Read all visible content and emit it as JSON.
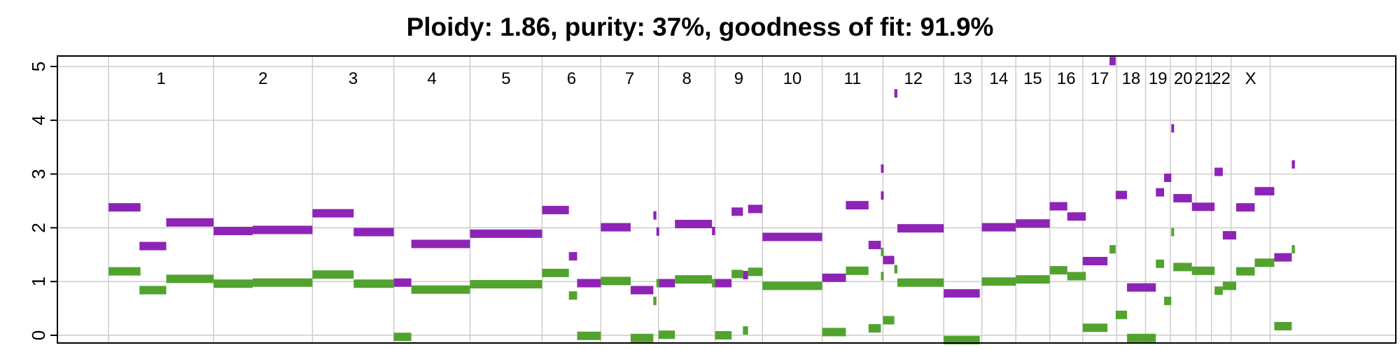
{
  "chart_data": {
    "type": "segment",
    "title": "Ploidy: 1.86, purity: 37%, goodness of fit: 91.9%",
    "xlabel": "",
    "ylabel": "",
    "ylim": [
      0,
      5
    ],
    "yticks": [
      "0",
      "1",
      "2",
      "3",
      "4",
      "5"
    ],
    "grid": true,
    "chromosomes": [
      {
        "label": "1",
        "start": 0.0,
        "end": 10.2
      },
      {
        "label": "2",
        "start": 10.2,
        "end": 19.8
      },
      {
        "label": "3",
        "start": 19.8,
        "end": 27.7
      },
      {
        "label": "4",
        "start": 27.7,
        "end": 35.1
      },
      {
        "label": "5",
        "start": 35.1,
        "end": 42.1
      },
      {
        "label": "6",
        "start": 42.1,
        "end": 47.8
      },
      {
        "label": "7",
        "start": 47.8,
        "end": 53.4
      },
      {
        "label": "8",
        "start": 53.4,
        "end": 58.9
      },
      {
        "label": "9",
        "start": 58.9,
        "end": 63.5
      },
      {
        "label": "10",
        "start": 63.5,
        "end": 69.3
      },
      {
        "label": "11",
        "start": 69.3,
        "end": 75.2
      },
      {
        "label": "12",
        "start": 75.2,
        "end": 81.1
      },
      {
        "label": "13",
        "start": 81.1,
        "end": 84.8
      },
      {
        "label": "14",
        "start": 84.8,
        "end": 88.1
      },
      {
        "label": "15",
        "start": 88.1,
        "end": 91.4
      },
      {
        "label": "16",
        "start": 91.4,
        "end": 94.6
      },
      {
        "label": "17",
        "start": 94.6,
        "end": 97.9
      },
      {
        "label": "18",
        "start": 97.9,
        "end": 100.7
      },
      {
        "label": "19",
        "start": 100.7,
        "end": 103.1
      },
      {
        "label": "20",
        "start": 103.1,
        "end": 105.6
      },
      {
        "label": "21",
        "start": 105.6,
        "end": 107.1
      },
      {
        "label": "22",
        "start": 107.1,
        "end": 109.0
      },
      {
        "label": "X",
        "start": 109.0,
        "end": 112.8
      }
    ],
    "xlim": [
      -4.97,
      125.0
    ],
    "series": [
      {
        "color": "#8e24b5",
        "segments": [
          [
            0.0,
            3.1,
            2.38
          ],
          [
            3.0,
            5.6,
            1.66
          ],
          [
            5.6,
            10.2,
            2.1
          ],
          [
            10.2,
            14.0,
            1.94
          ],
          [
            14.0,
            19.8,
            1.96
          ],
          [
            19.8,
            23.8,
            2.27
          ],
          [
            23.8,
            27.7,
            1.92
          ],
          [
            27.7,
            29.4,
            0.98
          ],
          [
            29.4,
            35.1,
            1.7
          ],
          [
            35.1,
            42.1,
            1.89
          ],
          [
            42.1,
            44.7,
            2.33
          ],
          [
            44.7,
            45.5,
            1.47
          ],
          [
            45.5,
            47.8,
            0.97
          ],
          [
            47.8,
            50.7,
            2.01
          ],
          [
            50.7,
            52.9,
            0.84
          ],
          [
            52.9,
            53.2,
            2.23
          ],
          [
            53.2,
            53.4,
            1.93
          ],
          [
            53.4,
            55.0,
            0.97
          ],
          [
            55.0,
            58.6,
            2.07
          ],
          [
            58.6,
            58.9,
            1.94
          ],
          [
            58.9,
            60.5,
            0.97
          ],
          [
            60.5,
            61.6,
            2.3
          ],
          [
            61.6,
            62.1,
            1.12
          ],
          [
            62.1,
            63.5,
            2.35
          ],
          [
            63.5,
            69.3,
            1.83
          ],
          [
            69.3,
            71.6,
            1.07
          ],
          [
            71.6,
            73.8,
            2.42
          ],
          [
            73.8,
            75.0,
            1.68
          ],
          [
            75.0,
            75.2,
            3.1
          ],
          [
            75.0,
            75.2,
            2.6
          ],
          [
            75.2,
            76.3,
            1.4
          ],
          [
            76.3,
            76.6,
            4.5
          ],
          [
            76.6,
            81.1,
            1.99
          ],
          [
            81.1,
            84.6,
            0.78
          ],
          [
            84.8,
            88.1,
            2.01
          ],
          [
            88.1,
            91.4,
            2.08
          ],
          [
            91.4,
            93.1,
            2.4
          ],
          [
            93.1,
            94.9,
            2.21
          ],
          [
            94.6,
            97.0,
            1.38
          ],
          [
            97.2,
            97.8,
            5.1
          ],
          [
            97.8,
            98.9,
            2.61
          ],
          [
            98.9,
            101.7,
            0.89
          ],
          [
            101.7,
            102.5,
            2.66
          ],
          [
            102.5,
            103.2,
            2.93
          ],
          [
            103.2,
            103.4,
            3.85
          ],
          [
            103.4,
            105.2,
            2.55
          ],
          [
            105.2,
            107.4,
            2.39
          ],
          [
            107.4,
            108.2,
            3.04
          ],
          [
            108.2,
            109.5,
            1.86
          ],
          [
            109.5,
            111.3,
            2.38
          ],
          [
            111.3,
            113.2,
            2.68
          ],
          [
            113.2,
            114.9,
            1.45
          ],
          [
            114.9,
            115.2,
            3.18
          ]
        ]
      },
      {
        "color": "#52a32e",
        "segments": [
          [
            0.0,
            3.1,
            1.19
          ],
          [
            3.0,
            5.6,
            0.84
          ],
          [
            5.6,
            10.2,
            1.05
          ],
          [
            10.2,
            14.0,
            0.96
          ],
          [
            14.0,
            19.8,
            0.98
          ],
          [
            19.8,
            23.8,
            1.13
          ],
          [
            23.8,
            27.7,
            0.96
          ],
          [
            27.7,
            29.4,
            -0.03
          ],
          [
            29.4,
            35.1,
            0.85
          ],
          [
            35.1,
            42.1,
            0.95
          ],
          [
            42.1,
            44.7,
            1.16
          ],
          [
            44.7,
            45.5,
            0.74
          ],
          [
            45.5,
            47.8,
            -0.01
          ],
          [
            47.8,
            50.7,
            1.01
          ],
          [
            50.7,
            52.9,
            -0.05
          ],
          [
            52.9,
            53.2,
            0.64
          ],
          [
            53.2,
            53.4,
            0.97
          ],
          [
            53.4,
            55.0,
            0.01
          ],
          [
            55.0,
            58.6,
            1.04
          ],
          [
            58.6,
            58.9,
            0.97
          ],
          [
            58.9,
            60.5,
            0.0
          ],
          [
            60.5,
            61.6,
            1.14
          ],
          [
            61.6,
            62.1,
            0.09
          ],
          [
            62.1,
            63.5,
            1.18
          ],
          [
            63.5,
            69.3,
            0.92
          ],
          [
            69.3,
            71.6,
            0.06
          ],
          [
            71.6,
            73.8,
            1.2
          ],
          [
            73.8,
            75.0,
            0.13
          ],
          [
            75.0,
            75.2,
            1.55
          ],
          [
            75.0,
            75.2,
            1.1
          ],
          [
            75.2,
            76.3,
            0.28
          ],
          [
            76.3,
            76.6,
            1.23
          ],
          [
            76.6,
            81.1,
            0.98
          ],
          [
            81.1,
            84.6,
            -0.09
          ],
          [
            84.8,
            88.1,
            1.0
          ],
          [
            88.1,
            91.4,
            1.04
          ],
          [
            91.4,
            93.1,
            1.21
          ],
          [
            93.1,
            94.9,
            1.1
          ],
          [
            94.6,
            97.0,
            0.14
          ],
          [
            97.2,
            97.8,
            1.6
          ],
          [
            97.8,
            98.9,
            0.38
          ],
          [
            98.9,
            101.7,
            -0.05
          ],
          [
            101.7,
            102.5,
            1.33
          ],
          [
            102.5,
            103.2,
            0.64
          ],
          [
            103.2,
            103.4,
            1.92
          ],
          [
            103.4,
            105.2,
            1.27
          ],
          [
            105.2,
            107.4,
            1.2
          ],
          [
            107.4,
            108.2,
            0.83
          ],
          [
            108.2,
            109.5,
            0.92
          ],
          [
            109.5,
            111.3,
            1.19
          ],
          [
            111.3,
            113.2,
            1.35
          ],
          [
            113.2,
            114.9,
            0.17
          ],
          [
            114.9,
            115.2,
            1.6
          ]
        ]
      }
    ]
  }
}
